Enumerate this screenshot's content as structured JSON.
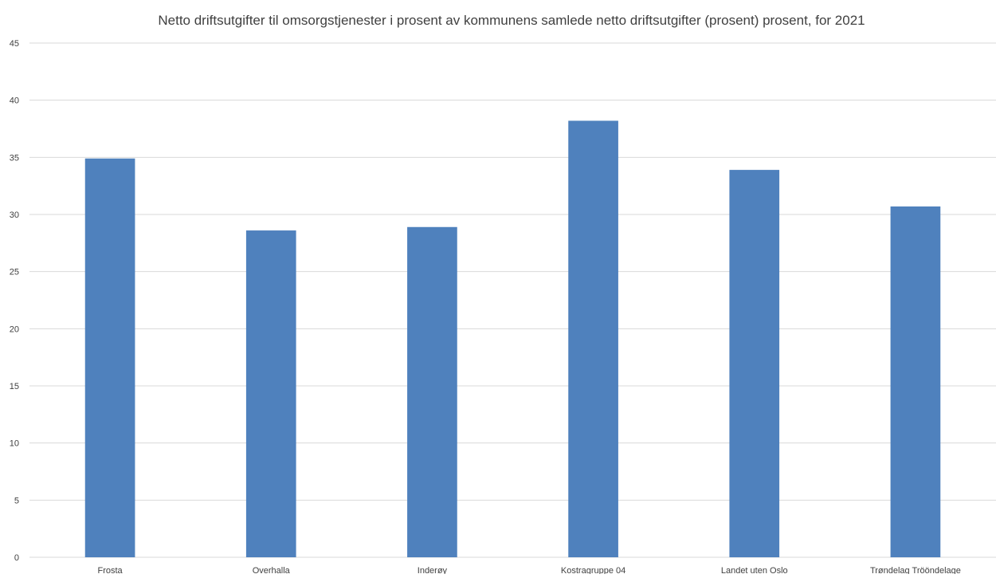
{
  "chart_data": {
    "type": "bar",
    "title": "Netto driftsutgifter til omsorgstjenester i prosent av kommunens samlede netto driftsutgifter (prosent) prosent, for 2021",
    "xlabel": "",
    "ylabel": "",
    "categories": [
      "Frosta",
      "Overhalla",
      "Inderøy",
      "Kostragruppe 04",
      "Landet uten Oslo",
      "Trøndelag Trööndelage"
    ],
    "values": [
      34.9,
      28.6,
      28.9,
      38.2,
      33.9,
      30.7
    ],
    "ylim": [
      0,
      45
    ],
    "yticks": [
      "0",
      "5",
      "10",
      "15",
      "20",
      "25",
      "30",
      "35",
      "40",
      "45"
    ],
    "grid": true,
    "legend": "none",
    "bar_color": "#4f81bd"
  }
}
